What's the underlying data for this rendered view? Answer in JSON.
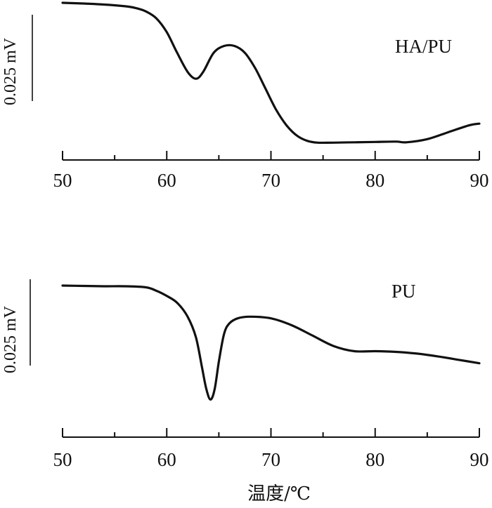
{
  "chart_data": [
    {
      "type": "line",
      "xlabel": "",
      "ylabel": "0.025 mV",
      "xlim": [
        50,
        90
      ],
      "xticks": [
        "50",
        "60",
        "70",
        "80",
        "90"
      ],
      "series": [
        {
          "name": "HA/PU",
          "x": [
            50,
            52,
            54,
            56,
            57,
            58,
            59,
            60,
            61,
            62,
            62.8,
            63.5,
            64.5,
            65.5,
            66.5,
            67.5,
            68.5,
            69.5,
            70.5,
            71.5,
            72.5,
            73.5,
            74.5,
            76,
            78,
            80,
            82,
            83,
            85,
            87,
            89,
            90
          ],
          "y": [
            0,
            -0.0002,
            -0.0005,
            -0.001,
            -0.0015,
            -0.0025,
            -0.0045,
            -0.0085,
            -0.0145,
            -0.02,
            -0.022,
            -0.02,
            -0.0145,
            -0.0125,
            -0.0125,
            -0.0145,
            -0.019,
            -0.025,
            -0.031,
            -0.0355,
            -0.0385,
            -0.04,
            -0.0405,
            -0.0405,
            -0.0404,
            -0.0403,
            -0.0402,
            -0.0404,
            -0.0395,
            -0.0375,
            -0.0355,
            -0.035
          ]
        },
        {
          "name": "PU",
          "x": [
            50,
            52,
            54,
            56,
            58,
            59,
            60,
            61,
            62,
            62.8,
            63.4,
            63.8,
            64.2,
            64.6,
            65,
            65.5,
            66,
            66.8,
            68,
            70,
            72,
            74,
            76,
            78,
            80,
            82,
            84,
            86,
            88,
            90
          ],
          "y": [
            0,
            -0.0001,
            -0.0002,
            -0.0002,
            -0.0005,
            -0.0015,
            -0.003,
            -0.005,
            -0.009,
            -0.015,
            -0.024,
            -0.03,
            -0.033,
            -0.03,
            -0.022,
            -0.014,
            -0.011,
            -0.0095,
            -0.009,
            -0.0095,
            -0.0115,
            -0.0145,
            -0.0175,
            -0.019,
            -0.019,
            -0.0192,
            -0.0197,
            -0.0205,
            -0.0215,
            -0.0225
          ]
        }
      ]
    }
  ],
  "labels": {
    "top_series": "HA/PU",
    "bottom_series": "PU",
    "scale_top": "0.025 mV",
    "scale_bottom": "0.025 mV",
    "x_title": "温度/℃"
  }
}
